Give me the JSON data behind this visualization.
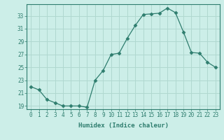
{
  "x": [
    0,
    1,
    2,
    3,
    4,
    5,
    6,
    7,
    8,
    9,
    10,
    11,
    12,
    13,
    14,
    15,
    16,
    17,
    18,
    19,
    20,
    21,
    22,
    23
  ],
  "y": [
    22,
    21.5,
    20,
    19.5,
    19,
    19,
    19,
    18.8,
    23,
    24.5,
    27,
    27.2,
    29.5,
    31.5,
    33.2,
    33.3,
    33.4,
    34.2,
    33.5,
    30.5,
    27.3,
    27.2,
    25.8,
    25
  ],
  "xlabel": "Humidex (Indice chaleur)",
  "xlim": [
    -0.5,
    23.5
  ],
  "ylim": [
    18.5,
    34.8
  ],
  "yticks": [
    19,
    21,
    23,
    25,
    27,
    29,
    31,
    33
  ],
  "xticks": [
    0,
    1,
    2,
    3,
    4,
    5,
    6,
    7,
    8,
    9,
    10,
    11,
    12,
    13,
    14,
    15,
    16,
    17,
    18,
    19,
    20,
    21,
    22,
    23
  ],
  "line_color": "#2e7d6e",
  "bg_color": "#cceee8",
  "grid_color": "#b0d8d0",
  "marker": "D",
  "marker_size": 2.5,
  "linewidth": 0.9,
  "tick_fontsize": 5.5,
  "xlabel_fontsize": 6.5
}
